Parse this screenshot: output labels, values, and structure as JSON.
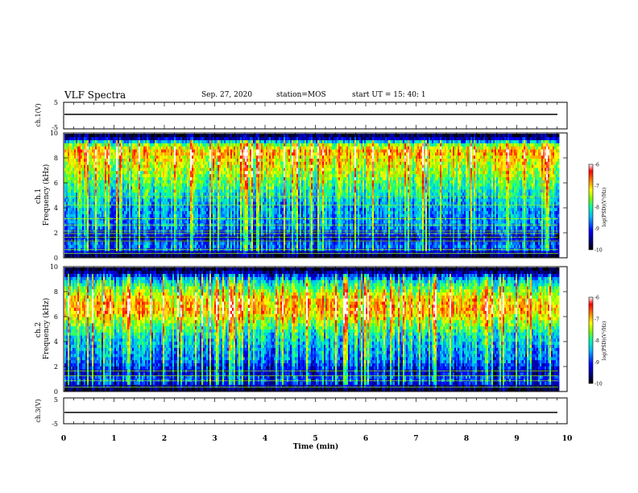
{
  "header": {
    "title": "VLF Spectra",
    "date": "Sep. 27, 2020",
    "station": "station=MOS",
    "start_ut": "start  UT  =   15: 40: 1"
  },
  "colors": {
    "colormap": [
      "#000000",
      "#00007a",
      "#0000ff",
      "#00b4ff",
      "#00ffaa",
      "#7fff00",
      "#ffff00",
      "#ff8c00",
      "#ff0000",
      "#ffffff"
    ],
    "trace": "#000000"
  },
  "chart_data": [
    {
      "type": "line",
      "panel": "ch1-voltage",
      "ylabel": "ch.1(V)",
      "ylim": [
        -5,
        5
      ],
      "yticks": [
        "5",
        "-5"
      ],
      "series": [
        {
          "x": [
            0,
            9.8
          ],
          "y": [
            0,
            0
          ]
        }
      ]
    },
    {
      "type": "heatmap",
      "panel": "ch1-spectrogram",
      "ylabel": "ch.1\nFrequency (kHz)",
      "ylim": [
        0,
        10
      ],
      "yticks": [
        "0",
        "2",
        "4",
        "6",
        "8",
        "10"
      ],
      "colorbar": {
        "label": "log(PSD)(V²/Hz)",
        "range": [
          -10,
          -6
        ],
        "ticks": [
          "-6",
          "-7",
          "-8",
          "-9",
          "-10"
        ]
      },
      "bands_khz": [
        0.3,
        0.6,
        1.3,
        1.6,
        1.9,
        2.1,
        2.6,
        3.1,
        4.2,
        4.9
      ],
      "profile": [
        [
          0,
          -10
        ],
        [
          0.6,
          -9
        ],
        [
          1.0,
          -8.6
        ],
        [
          1.5,
          -9.4
        ],
        [
          2.5,
          -8.6
        ],
        [
          4.0,
          -8.5
        ],
        [
          5.5,
          -8.0
        ],
        [
          6.5,
          -7.6
        ],
        [
          7.5,
          -7.3
        ],
        [
          8.6,
          -6.9
        ],
        [
          9.2,
          -7.7
        ],
        [
          9.6,
          -9.3
        ],
        [
          10.0,
          -10
        ]
      ]
    },
    {
      "type": "heatmap",
      "panel": "ch2-spectrogram",
      "ylabel": "ch.2\nFrequency (kHz)",
      "ylim": [
        0,
        10
      ],
      "yticks": [
        "0",
        "2",
        "4",
        "6",
        "8",
        "10"
      ],
      "colorbar": {
        "label": "log(PSD)(V²/Hz)",
        "range": [
          -10,
          -6
        ],
        "ticks": [
          "-6",
          "-7",
          "-8",
          "-9",
          "-10"
        ]
      },
      "bands_khz": [
        0.3,
        0.8,
        1.2,
        1.6
      ],
      "profile": [
        [
          0,
          -10
        ],
        [
          0.6,
          -9.2
        ],
        [
          1.0,
          -8.8
        ],
        [
          1.5,
          -9.4
        ],
        [
          2.5,
          -8.7
        ],
        [
          3.5,
          -8.5
        ],
        [
          4.5,
          -8.2
        ],
        [
          5.5,
          -7.6
        ],
        [
          6.5,
          -6.9
        ],
        [
          7.5,
          -7.1
        ],
        [
          8.3,
          -7.7
        ],
        [
          9.0,
          -8.4
        ],
        [
          9.6,
          -9.5
        ],
        [
          10.0,
          -10
        ]
      ]
    },
    {
      "type": "line",
      "panel": "ch3-voltage",
      "ylabel": "ch.3(V)",
      "ylim": [
        -5,
        5
      ],
      "yticks": [
        "5",
        "-5"
      ],
      "series": [
        {
          "x": [
            0,
            9.8
          ],
          "y": [
            -2,
            -2
          ]
        }
      ]
    }
  ],
  "xaxis": {
    "label": "Time  (min)",
    "range": [
      0,
      10
    ],
    "ticks": [
      "0",
      "1",
      "2",
      "3",
      "4",
      "5",
      "6",
      "7",
      "8",
      "9",
      "10"
    ]
  }
}
